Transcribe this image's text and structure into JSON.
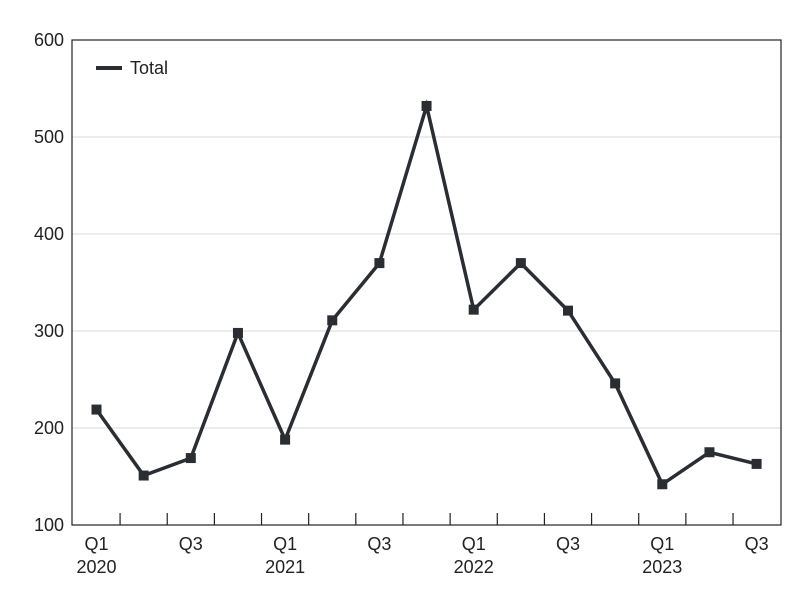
{
  "chart_data": {
    "type": "line",
    "x": [
      "Q1 2020",
      "Q2 2020",
      "Q3 2020",
      "Q4 2020",
      "Q1 2021",
      "Q2 2021",
      "Q3 2021",
      "Q4 2021",
      "Q1 2022",
      "Q2 2022",
      "Q3 2022",
      "Q4 2022",
      "Q1 2023",
      "Q2 2023",
      "Q3 2023"
    ],
    "x_tick_labels": [
      {
        "quarter": "Q1",
        "year": "2020"
      },
      {
        "quarter": "",
        "year": ""
      },
      {
        "quarter": "Q3",
        "year": ""
      },
      {
        "quarter": "",
        "year": ""
      },
      {
        "quarter": "Q1",
        "year": "2021"
      },
      {
        "quarter": "",
        "year": ""
      },
      {
        "quarter": "Q3",
        "year": ""
      },
      {
        "quarter": "",
        "year": ""
      },
      {
        "quarter": "Q1",
        "year": "2022"
      },
      {
        "quarter": "",
        "year": ""
      },
      {
        "quarter": "Q3",
        "year": ""
      },
      {
        "quarter": "",
        "year": ""
      },
      {
        "quarter": "Q1",
        "year": "2023"
      },
      {
        "quarter": "",
        "year": ""
      },
      {
        "quarter": "Q3",
        "year": ""
      }
    ],
    "series": [
      {
        "name": "Total",
        "values": [
          219,
          151,
          169,
          298,
          188,
          311,
          370,
          532,
          322,
          370,
          321,
          246,
          142,
          175,
          163
        ]
      }
    ],
    "ylim": [
      100,
      600
    ],
    "yticks": [
      100,
      200,
      300,
      400,
      500,
      600
    ],
    "title": "",
    "xlabel": "",
    "ylabel": "",
    "grid": "horizontal",
    "legend_position": "top-left",
    "colors": {
      "line": "#2a2e33",
      "grid": "#d9d9d9",
      "axis": "#222222"
    }
  }
}
